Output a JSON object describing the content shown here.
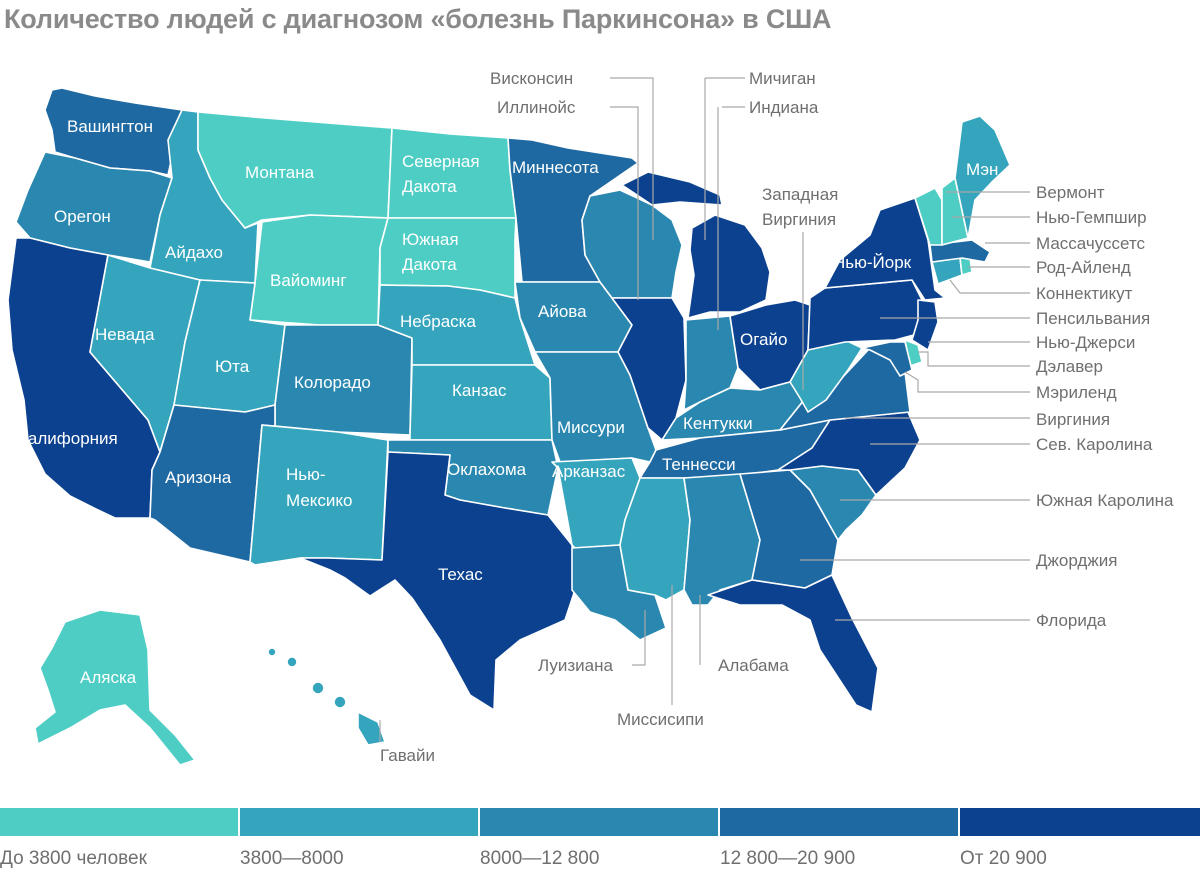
{
  "title": "Количество людей с диагнозом «болезнь Паркинсона» в США",
  "colors": {
    "c1": "#4ecdc4",
    "c2": "#35a5bd",
    "c3": "#2a88b0",
    "c4": "#1f69a2",
    "c5": "#0b418f"
  },
  "legend": [
    {
      "label": "До 3800 человек",
      "color_key": "c1"
    },
    {
      "label": "3800—8000",
      "color_key": "c2"
    },
    {
      "label": "8000—12 800",
      "color_key": "c3"
    },
    {
      "label": "12 800—20 900",
      "color_key": "c4"
    },
    {
      "label": "От 20 900",
      "color_key": "c5"
    }
  ],
  "states": {
    "washington": {
      "name": "Вашингтон",
      "category": "c4"
    },
    "oregon": {
      "name": "Орегон",
      "category": "c3"
    },
    "california": {
      "name": "Калифорния",
      "category": "c5"
    },
    "idaho": {
      "name": "Айдахо",
      "category": "c2"
    },
    "nevada": {
      "name": "Невада",
      "category": "c2"
    },
    "montana": {
      "name": "Монтана",
      "category": "c1"
    },
    "wyoming": {
      "name": "Вайоминг",
      "category": "c1"
    },
    "utah": {
      "name": "Юта",
      "category": "c2"
    },
    "colorado": {
      "name": "Колорадо",
      "category": "c3"
    },
    "arizona": {
      "name": "Аризона",
      "category": "c4"
    },
    "new_mexico_1": {
      "name": "Нью-",
      "category": "c2"
    },
    "new_mexico_2": {
      "name": "Мексико",
      "category": "c2"
    },
    "north_dakota_1": {
      "name": "Северная",
      "category": "c1"
    },
    "north_dakota_2": {
      "name": "Дакота",
      "category": "c1"
    },
    "south_dakota_1": {
      "name": "Южная",
      "category": "c1"
    },
    "south_dakota_2": {
      "name": "Дакота",
      "category": "c1"
    },
    "nebraska": {
      "name": "Небраска",
      "category": "c2"
    },
    "kansas": {
      "name": "Канзас",
      "category": "c2"
    },
    "oklahoma": {
      "name": "Оклахома",
      "category": "c3"
    },
    "texas": {
      "name": "Техас",
      "category": "c5"
    },
    "minnesota": {
      "name": "Миннесота",
      "category": "c4"
    },
    "iowa": {
      "name": "Айова",
      "category": "c3"
    },
    "missouri": {
      "name": "Миссури",
      "category": "c3"
    },
    "arkansas": {
      "name": "Арканзас",
      "category": "c2"
    },
    "louisiana": {
      "name": "Луизиана",
      "category": "c3"
    },
    "wisconsin": {
      "name": "Висконсин",
      "category": "c3"
    },
    "illinois": {
      "name": "Иллинойс",
      "category": "c5"
    },
    "michigan": {
      "name": "Мичиган",
      "category": "c5"
    },
    "indiana": {
      "name": "Индиана",
      "category": "c3"
    },
    "ohio": {
      "name": "Огайо",
      "category": "c5"
    },
    "kentucky": {
      "name": "Кентукки",
      "category": "c3"
    },
    "tennessee": {
      "name": "Теннесси",
      "category": "c4"
    },
    "mississippi": {
      "name": "Миссисипи",
      "category": "c2"
    },
    "alabama": {
      "name": "Алабама",
      "category": "c3"
    },
    "georgia": {
      "name": "Джорджия",
      "category": "c4"
    },
    "florida": {
      "name": "Флорида",
      "category": "c5"
    },
    "south_carolina": {
      "name": "Южная Каролина",
      "category": "c3"
    },
    "north_carolina": {
      "name": "Сев. Каролина",
      "category": "c5"
    },
    "virginia": {
      "name": "Виргиния",
      "category": "c4"
    },
    "west_virginia_1": {
      "name": "Западная",
      "category": "c2"
    },
    "west_virginia_2": {
      "name": "Виргиния",
      "category": "c2"
    },
    "pennsylvania": {
      "name": "Пенсильвания",
      "category": "c5"
    },
    "new_york": {
      "name": "Нью-Йорк",
      "category": "c5"
    },
    "new_jersey": {
      "name": "Нью-Джерси",
      "category": "c5"
    },
    "delaware": {
      "name": "Дэлавер",
      "category": "c1"
    },
    "maryland": {
      "name": "Мэриленд",
      "category": "c4"
    },
    "connecticut": {
      "name": "Коннектикут",
      "category": "c2"
    },
    "rhode_island": {
      "name": "Род-Айленд",
      "category": "c1"
    },
    "massachusetts": {
      "name": "Массачуссетс",
      "category": "c4"
    },
    "vermont": {
      "name": "Вермонт",
      "category": "c1"
    },
    "new_hampshire": {
      "name": "Нью-Гемпшир",
      "category": "c1"
    },
    "maine": {
      "name": "Мэн",
      "category": "c2"
    },
    "alaska": {
      "name": "Аляска",
      "category": "c1"
    },
    "hawaii": {
      "name": "Гавайи",
      "category": "c2"
    }
  }
}
